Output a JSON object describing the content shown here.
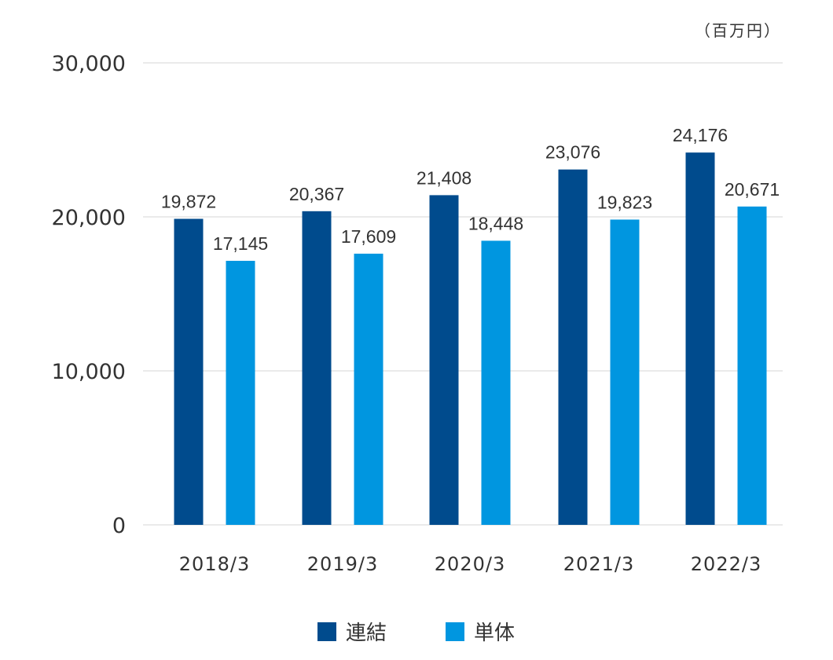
{
  "chart_data": {
    "type": "bar",
    "unit_label": "（百万円）",
    "categories": [
      "2018/3",
      "2019/3",
      "2020/3",
      "2021/3",
      "2022/3"
    ],
    "series": [
      {
        "name": "連結",
        "color": "#004b8d",
        "values": [
          19872,
          20367,
          21408,
          23076,
          24176
        ]
      },
      {
        "name": "単体",
        "color": "#0096e0",
        "values": [
          17145,
          17609,
          18448,
          19823,
          20671
        ]
      }
    ],
    "ylim": [
      0,
      30000
    ],
    "yticks": [
      0,
      10000,
      20000,
      30000
    ],
    "ytick_labels": [
      "0",
      "10,000",
      "20,000",
      "30,000"
    ],
    "data_labels": [
      [
        "19,872",
        "20,367",
        "21,408",
        "23,076",
        "24,176"
      ],
      [
        "17,145",
        "17,609",
        "18,448",
        "19,823",
        "20,671"
      ]
    ],
    "grid": true,
    "legend_position": "bottom"
  }
}
